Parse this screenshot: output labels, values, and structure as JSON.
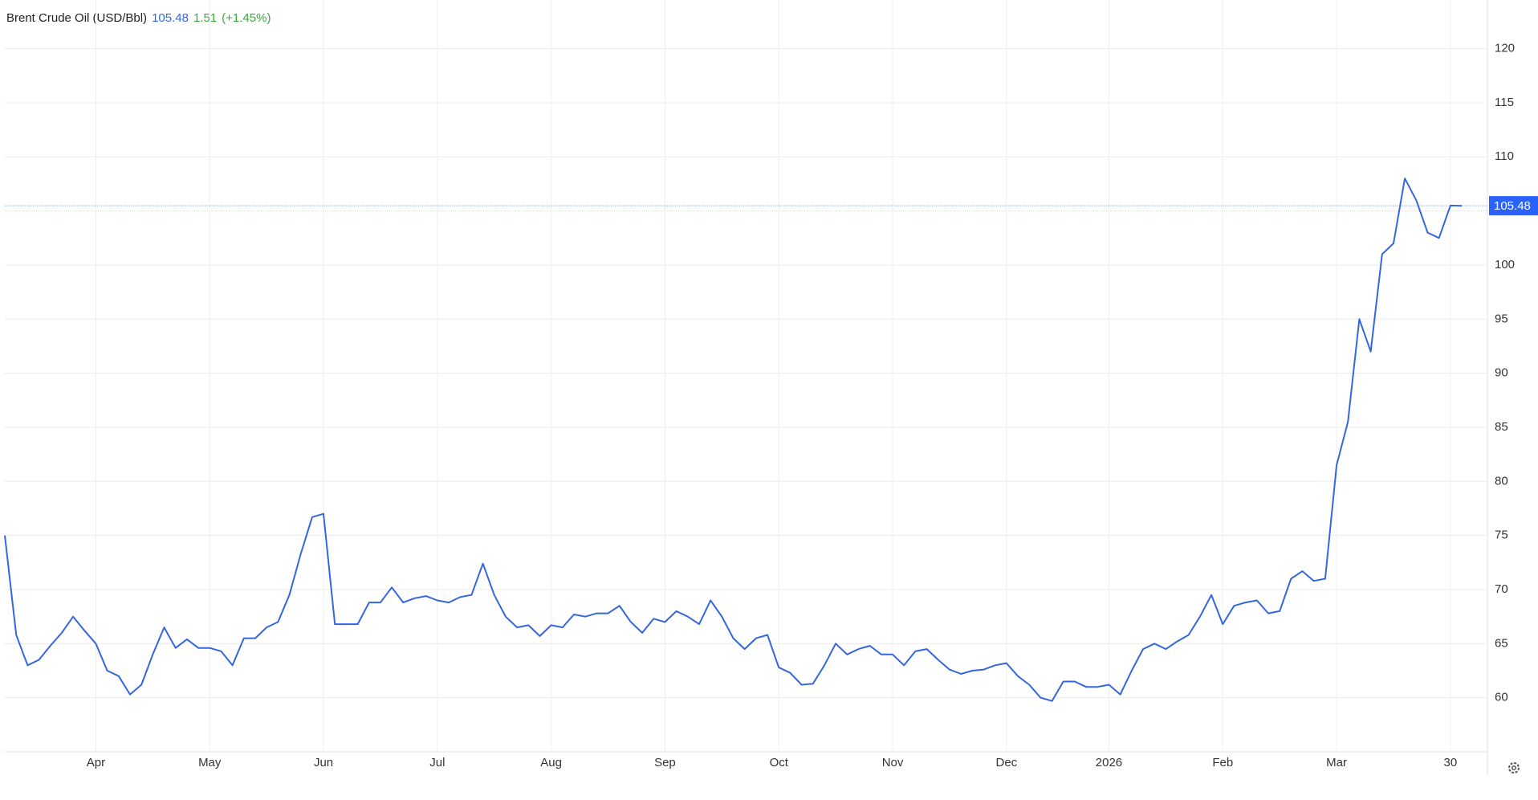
{
  "chart_data": {
    "type": "line",
    "title": "Brent Crude Oil (USD/Bbl)",
    "last_value": 105.48,
    "change": 1.51,
    "change_percent": "(+1.45%)",
    "categories": [
      null,
      null,
      null,
      null,
      null,
      null,
      null,
      null,
      "Apr",
      null,
      null,
      null,
      null,
      null,
      null,
      null,
      null,
      null,
      "May",
      null,
      null,
      null,
      null,
      null,
      null,
      null,
      null,
      null,
      "Jun",
      null,
      null,
      null,
      null,
      null,
      null,
      null,
      null,
      null,
      "Jul",
      null,
      null,
      null,
      null,
      null,
      null,
      null,
      null,
      null,
      "Aug",
      null,
      null,
      null,
      null,
      null,
      null,
      null,
      null,
      null,
      "Sep",
      null,
      null,
      null,
      null,
      null,
      null,
      null,
      null,
      null,
      "Oct",
      null,
      null,
      null,
      null,
      null,
      null,
      null,
      null,
      null,
      "Nov",
      null,
      null,
      null,
      null,
      null,
      null,
      null,
      null,
      null,
      "Dec",
      null,
      null,
      null,
      null,
      null,
      null,
      null,
      null,
      "2026",
      null,
      null,
      null,
      null,
      null,
      null,
      null,
      null,
      null,
      "Feb",
      null,
      null,
      null,
      null,
      null,
      null,
      null,
      null,
      null,
      "Mar",
      null,
      null,
      null,
      null,
      null,
      null,
      null,
      null,
      null,
      "30",
      null
    ],
    "series": [
      {
        "name": "Brent Crude Oil",
        "color": "#3466e0",
        "values": [
          75,
          65.8,
          63,
          63.5,
          64.8,
          66,
          67.5,
          66.2,
          65,
          62.5,
          62,
          60.3,
          61.2,
          64,
          66.5,
          64.6,
          65.4,
          64.6,
          64.6,
          64.3,
          63,
          65.5,
          65.5,
          66.5,
          67,
          69.5,
          73.3,
          76.7,
          77,
          66.8,
          66.8,
          66.8,
          68.8,
          68.8,
          70.2,
          68.8,
          69.2,
          69.4,
          69,
          68.8,
          69.3,
          69.5,
          72.4,
          69.5,
          67.5,
          66.5,
          66.7,
          65.7,
          66.7,
          66.5,
          67.7,
          67.5,
          67.8,
          67.8,
          68.5,
          67,
          66,
          67.3,
          67,
          68,
          67.5,
          66.8,
          69,
          67.5,
          65.5,
          64.5,
          65.5,
          65.8,
          62.8,
          62.3,
          61.2,
          61.3,
          63,
          65,
          64,
          64.5,
          64.8,
          64,
          64,
          63,
          64.3,
          64.5,
          63.5,
          62.6,
          62.2,
          62.5,
          62.6,
          63,
          63.2,
          62,
          61.2,
          60,
          59.7,
          61.5,
          61.5,
          61,
          61,
          61.2,
          60.3,
          62.5,
          64.5,
          65,
          64.5,
          65.2,
          65.8,
          67.5,
          69.5,
          66.8,
          68.5,
          68.8,
          69,
          67.8,
          68,
          71,
          71.7,
          70.8,
          71,
          81.5,
          85.5,
          95,
          92,
          101,
          102,
          108,
          106,
          103,
          102.5,
          105.5,
          105.48
        ]
      }
    ],
    "ylim": [
      55,
      124.5
    ],
    "yticks": [
      60,
      65,
      70,
      75,
      80,
      85,
      90,
      95,
      100,
      105,
      110,
      115,
      120
    ],
    "grid": true,
    "badge_color": "#2962ff"
  }
}
